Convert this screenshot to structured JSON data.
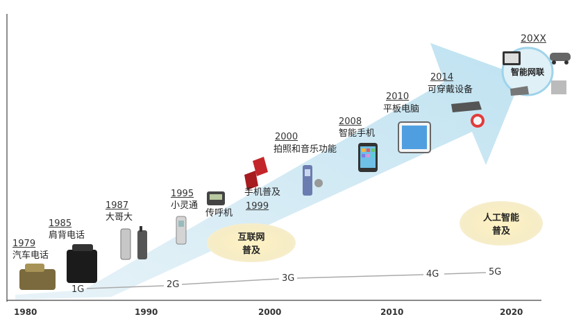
{
  "milestones": [
    {
      "year": "1979",
      "label": "汽车电话"
    },
    {
      "year": "1985",
      "label": "肩背电话"
    },
    {
      "year": "1987",
      "label": "大哥大"
    },
    {
      "year": "1995",
      "label": "小灵通"
    },
    {
      "label": "传呼机"
    },
    {
      "label": "手机普及",
      "year": "1999"
    },
    {
      "year": "2000",
      "label": "拍照和音乐功能"
    },
    {
      "year": "2008",
      "label": "智能手机"
    },
    {
      "year": "2010",
      "label": "平板电脑"
    },
    {
      "year": "2014",
      "label": "可穿戴设备"
    },
    {
      "year": "20XX",
      "label": "智能网联"
    }
  ],
  "bubbles": {
    "internet": {
      "line1": "互联网",
      "line2": "普及"
    },
    "ai": {
      "line1": "人工智能",
      "line2": "普及"
    }
  },
  "generations": [
    "1G",
    "2G",
    "3G",
    "4G",
    "5G"
  ],
  "axis": [
    "1980",
    "1990",
    "2000",
    "2010",
    "2020"
  ],
  "colors": {
    "arrow": "#cfe7f3",
    "accent": "#9fd3ea",
    "bubble": "#f6ecc5"
  }
}
